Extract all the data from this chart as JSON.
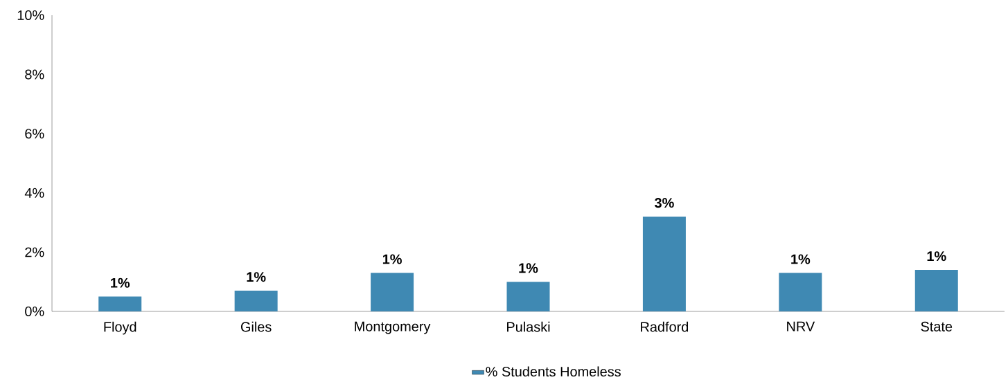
{
  "chart_data": {
    "type": "bar",
    "categories": [
      "Floyd",
      "Giles",
      "Montgomery",
      "Pulaski",
      "Radford",
      "NRV",
      "State"
    ],
    "series": [
      {
        "name": "% Students Homeless",
        "color": "#3f89b3",
        "values": [
          0.5,
          0.7,
          1.3,
          1.0,
          3.2,
          1.3,
          1.4
        ]
      }
    ],
    "value_labels": [
      "1%",
      "1%",
      "1%",
      "1%",
      "3%",
      "1%",
      "1%"
    ],
    "ylim": [
      0,
      10
    ],
    "yticks": [
      {
        "value": 0,
        "label": "0%"
      },
      {
        "value": 2,
        "label": "2%"
      },
      {
        "value": 4,
        "label": "4%"
      },
      {
        "value": 6,
        "label": "6%"
      },
      {
        "value": 8,
        "label": "8%"
      },
      {
        "value": 10,
        "label": "10%"
      }
    ],
    "legend": "bottom",
    "grid": false
  }
}
